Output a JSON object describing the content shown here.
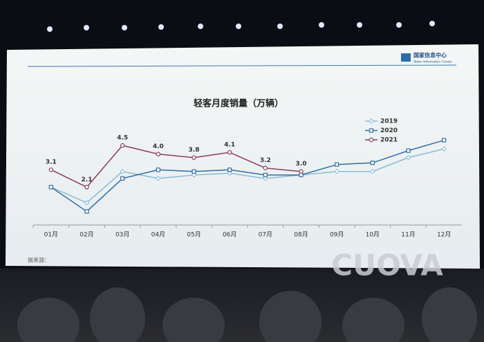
{
  "chart_data": {
    "type": "line",
    "title": "轻客月度销量（万辆）",
    "source": "据来源：",
    "logo": {
      "name": "国家信息中心",
      "english": "State Information Center"
    },
    "categories": [
      "01月",
      "02月",
      "03月",
      "04月",
      "05月",
      "06月",
      "07月",
      "08月",
      "09月",
      "10月",
      "11月",
      "12月"
    ],
    "series": [
      {
        "name": "2019",
        "color": "#86bcd6",
        "marker": "diamond",
        "values": [
          2.1,
          1.2,
          3.0,
          2.6,
          2.8,
          2.9,
          2.6,
          2.8,
          3.0,
          3.0,
          3.8,
          4.3
        ]
      },
      {
        "name": "2020",
        "color": "#2e6ea6",
        "marker": "square",
        "values": [
          2.1,
          0.7,
          2.6,
          3.1,
          3.0,
          3.1,
          2.8,
          2.8,
          3.4,
          3.5,
          4.2,
          4.8
        ]
      },
      {
        "name": "2021",
        "color": "#8c3b5c",
        "marker": "circle",
        "values": [
          3.1,
          2.1,
          4.5,
          4.0,
          3.8,
          4.1,
          3.2,
          3.0,
          null,
          null,
          null,
          null
        ],
        "value_labels": [
          "3.1",
          "2.1",
          "4.5",
          "4.0",
          "3.8",
          "4.1",
          "3.2",
          "3.0",
          null,
          null,
          null,
          null
        ]
      }
    ],
    "ylim": [
      0,
      5.5
    ],
    "legend": "upper right",
    "stage_logo": "CUOVA"
  }
}
